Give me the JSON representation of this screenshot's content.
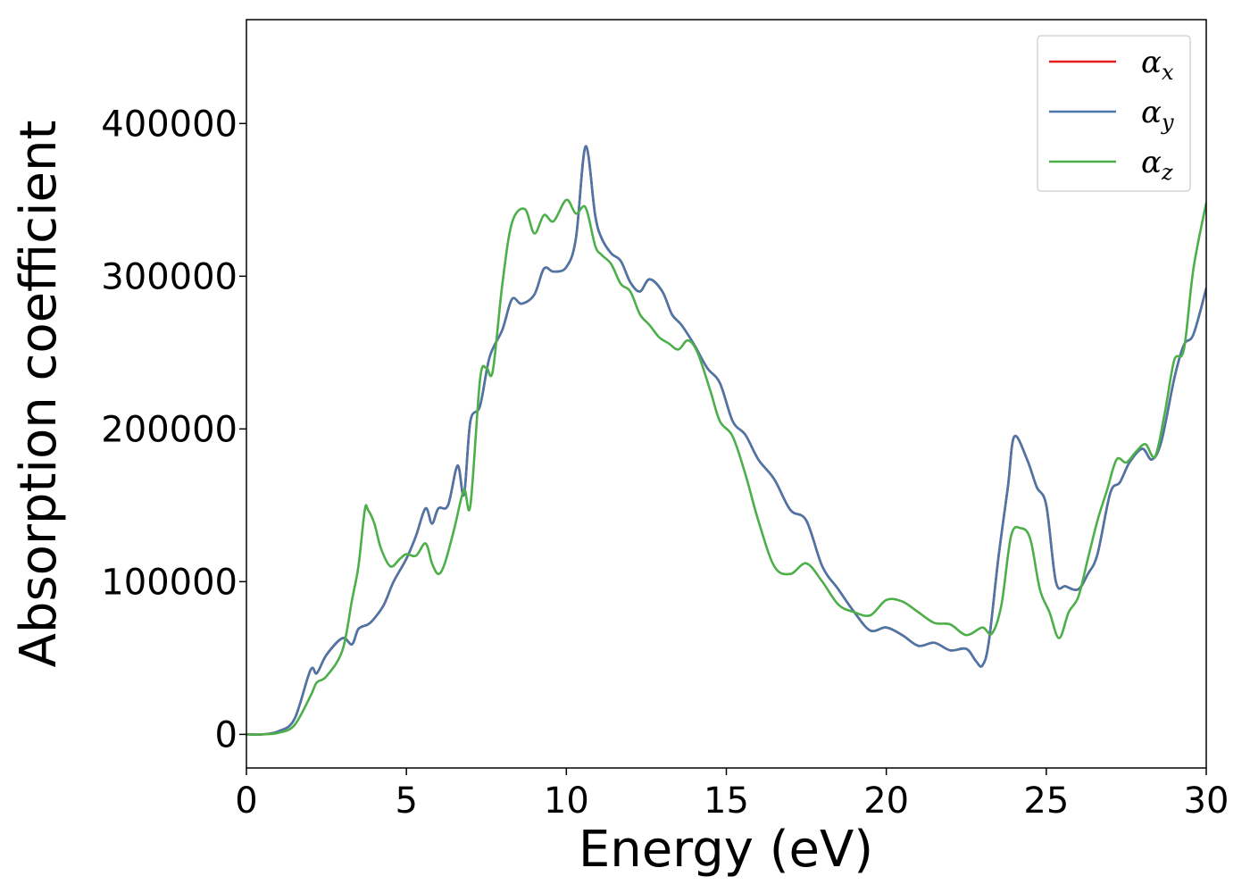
{
  "chart_data": {
    "type": "line",
    "xlabel": "Energy (eV)",
    "ylabel": "Absorption coefficient",
    "xlim": [
      0,
      30
    ],
    "ylim": [
      -22000,
      468000
    ],
    "xticks": [
      0,
      5,
      10,
      15,
      20,
      25,
      30
    ],
    "yticks": [
      0,
      100000,
      200000,
      300000,
      400000
    ],
    "grid": false,
    "legend_position": "top-right",
    "series": [
      {
        "name": "α",
        "subscript": "x",
        "color": "#e41a1c",
        "x": [
          0,
          0.5,
          1,
          1.5,
          2,
          2.2,
          2.5,
          3,
          3.3,
          3.5,
          3.8,
          4,
          4.3,
          4.6,
          5,
          5.3,
          5.6,
          5.8,
          6,
          6.3,
          6.6,
          6.8,
          7,
          7.3,
          7.6,
          8,
          8.3,
          8.6,
          9,
          9.3,
          9.6,
          10,
          10.3,
          10.6,
          10.9,
          11.1,
          11.4,
          11.7,
          12,
          12.3,
          12.6,
          13,
          13.3,
          13.6,
          14,
          14.4,
          14.8,
          15.2,
          15.6,
          16,
          16.5,
          17,
          17.5,
          18,
          18.5,
          19,
          19.5,
          20,
          20.5,
          21,
          21.5,
          22,
          22.5,
          22.8,
          23,
          23.2,
          23.5,
          23.8,
          24,
          24.4,
          24.7,
          25,
          25.3,
          25.6,
          26,
          26.3,
          26.6,
          27,
          27.3,
          27.6,
          28,
          28.3,
          28.6,
          29,
          29.3,
          29.6,
          30
        ],
        "values": [
          0,
          0,
          2000,
          10000,
          42000,
          40000,
          52000,
          63000,
          59000,
          69000,
          72000,
          76000,
          85000,
          100000,
          115000,
          130000,
          148000,
          138000,
          148000,
          150000,
          176000,
          157000,
          205000,
          215000,
          247000,
          265000,
          285000,
          282000,
          288000,
          305000,
          303000,
          306000,
          325000,
          385000,
          340000,
          325000,
          315000,
          310000,
          296000,
          290000,
          298000,
          290000,
          275000,
          268000,
          255000,
          240000,
          230000,
          205000,
          196000,
          180000,
          167000,
          147000,
          140000,
          110000,
          95000,
          80000,
          68000,
          70000,
          65000,
          58000,
          60000,
          55000,
          56000,
          48000,
          45000,
          60000,
          115000,
          162000,
          195000,
          180000,
          162000,
          150000,
          100000,
          97000,
          95000,
          105000,
          118000,
          158000,
          165000,
          178000,
          187000,
          180000,
          192000,
          233000,
          255000,
          262000,
          292000
        ]
      },
      {
        "name": "α",
        "subscript": "y",
        "color": "#4a76a8",
        "x": [
          0,
          0.5,
          1,
          1.5,
          2,
          2.2,
          2.5,
          3,
          3.3,
          3.5,
          3.8,
          4,
          4.3,
          4.6,
          5,
          5.3,
          5.6,
          5.8,
          6,
          6.3,
          6.6,
          6.8,
          7,
          7.3,
          7.6,
          8,
          8.3,
          8.6,
          9,
          9.3,
          9.6,
          10,
          10.3,
          10.6,
          10.9,
          11.1,
          11.4,
          11.7,
          12,
          12.3,
          12.6,
          13,
          13.3,
          13.6,
          14,
          14.4,
          14.8,
          15.2,
          15.6,
          16,
          16.5,
          17,
          17.5,
          18,
          18.5,
          19,
          19.5,
          20,
          20.5,
          21,
          21.5,
          22,
          22.5,
          22.8,
          23,
          23.2,
          23.5,
          23.8,
          24,
          24.4,
          24.7,
          25,
          25.3,
          25.6,
          26,
          26.3,
          26.6,
          27,
          27.3,
          27.6,
          28,
          28.3,
          28.6,
          29,
          29.3,
          29.6,
          30
        ],
        "values": [
          0,
          0,
          2000,
          10000,
          42000,
          40000,
          52000,
          63000,
          59000,
          69000,
          72000,
          76000,
          85000,
          100000,
          115000,
          130000,
          148000,
          138000,
          148000,
          150000,
          176000,
          157000,
          205000,
          215000,
          247000,
          265000,
          285000,
          282000,
          288000,
          305000,
          303000,
          306000,
          325000,
          385000,
          340000,
          325000,
          315000,
          310000,
          296000,
          290000,
          298000,
          290000,
          275000,
          268000,
          255000,
          240000,
          230000,
          205000,
          196000,
          180000,
          167000,
          147000,
          140000,
          110000,
          95000,
          80000,
          68000,
          70000,
          65000,
          58000,
          60000,
          55000,
          56000,
          48000,
          45000,
          60000,
          115000,
          162000,
          195000,
          180000,
          162000,
          150000,
          100000,
          97000,
          95000,
          105000,
          118000,
          158000,
          165000,
          178000,
          187000,
          180000,
          192000,
          233000,
          255000,
          262000,
          292000
        ]
      },
      {
        "name": "α",
        "subscript": "z",
        "color": "#4daf4a",
        "x": [
          0,
          0.5,
          1,
          1.5,
          2,
          2.2,
          2.5,
          3,
          3.3,
          3.5,
          3.7,
          3.8,
          4,
          4.2,
          4.5,
          4.8,
          5,
          5.3,
          5.6,
          5.8,
          6,
          6.2,
          6.5,
          6.8,
          7,
          7.3,
          7.5,
          7.7,
          8,
          8.3,
          8.7,
          9,
          9.3,
          9.6,
          10,
          10.3,
          10.6,
          10.9,
          11.1,
          11.4,
          11.7,
          12,
          12.3,
          12.6,
          12.9,
          13.2,
          13.5,
          13.8,
          14.1,
          14.5,
          14.8,
          15.2,
          15.6,
          16,
          16.5,
          17,
          17.5,
          18,
          18.5,
          19,
          19.5,
          20,
          20.5,
          21,
          21.5,
          22,
          22.5,
          23,
          23.3,
          23.6,
          23.9,
          24.2,
          24.5,
          24.8,
          25.1,
          25.4,
          25.7,
          26,
          26.3,
          26.6,
          26.9,
          27.2,
          27.5,
          27.8,
          28.1,
          28.4,
          28.7,
          29,
          29.3,
          29.6,
          30
        ],
        "values": [
          0,
          0,
          1000,
          6000,
          25000,
          34000,
          38000,
          55000,
          88000,
          110000,
          147000,
          147000,
          138000,
          122000,
          110000,
          115000,
          118000,
          117000,
          125000,
          112000,
          105000,
          112000,
          135000,
          160000,
          150000,
          232000,
          240000,
          238000,
          295000,
          335000,
          344000,
          328000,
          340000,
          336000,
          350000,
          341000,
          345000,
          320000,
          314000,
          308000,
          295000,
          290000,
          275000,
          268000,
          260000,
          256000,
          252000,
          258000,
          250000,
          225000,
          205000,
          195000,
          170000,
          140000,
          110000,
          105000,
          112000,
          100000,
          85000,
          80000,
          78000,
          88000,
          87000,
          80000,
          73000,
          72000,
          65000,
          70000,
          66000,
          85000,
          130000,
          135000,
          128000,
          95000,
          80000,
          63000,
          80000,
          90000,
          115000,
          140000,
          160000,
          180000,
          178000,
          185000,
          190000,
          182000,
          210000,
          245000,
          252000,
          305000,
          348000
        ]
      }
    ]
  }
}
